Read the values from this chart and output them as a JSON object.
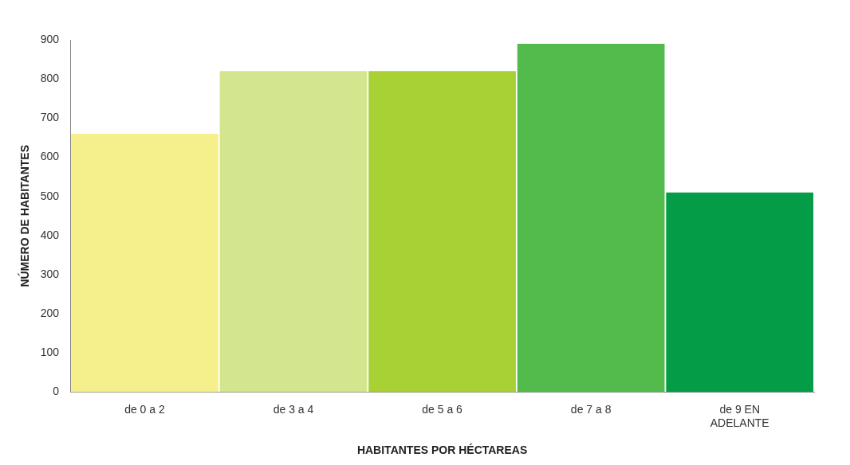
{
  "chart_data": {
    "type": "bar",
    "xlabel": "HABITANTES POR HÉCTAREAS",
    "ylabel": "NÚMERO DE HABITANTES",
    "categories": [
      "de 0 a 2",
      "de 3 a 4",
      "de 5 a 6",
      "de 7 a 8",
      "de 9 EN ADELANTE"
    ],
    "values": [
      660,
      820,
      820,
      890,
      510
    ],
    "colors": [
      "#f6f08c",
      "#d3e68e",
      "#a8d135",
      "#52bb4b",
      "#049c47"
    ],
    "ylim": [
      0,
      900
    ],
    "yticks": [
      0,
      100,
      200,
      300,
      400,
      500,
      600,
      700,
      800,
      900
    ],
    "grid": false
  }
}
